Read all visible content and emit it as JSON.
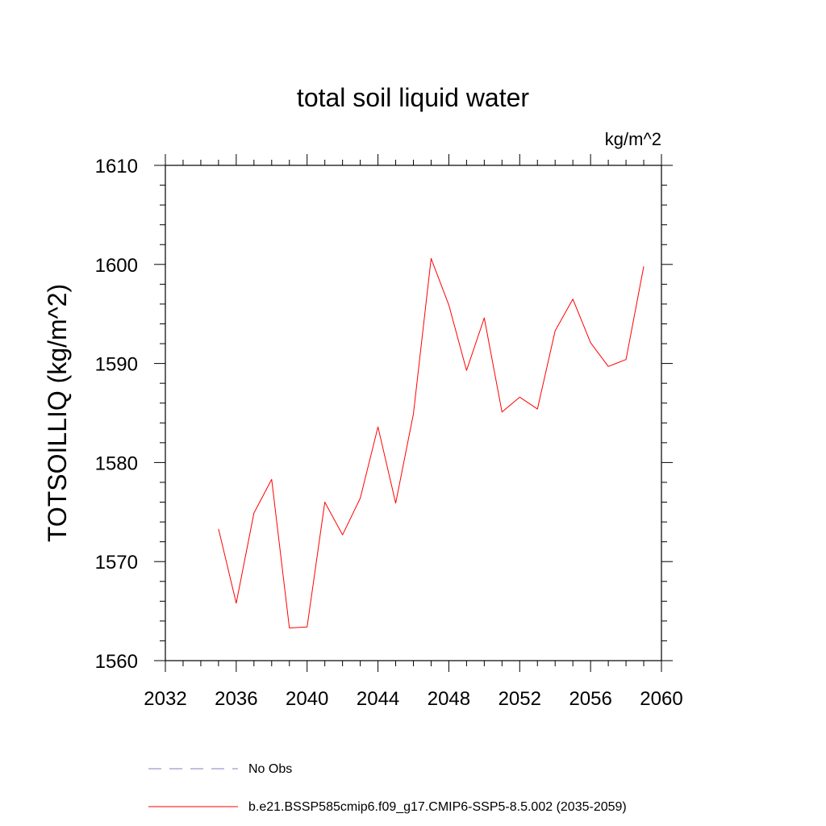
{
  "chart_data": {
    "type": "line",
    "title": "total soil liquid water",
    "units_label": "kg/m^2",
    "ylabel": "TOTSOILLIQ  (kg/m^2)",
    "xlabel": "",
    "xlim": [
      2032,
      2060
    ],
    "ylim": [
      1560,
      1610
    ],
    "x_ticks": [
      "2032",
      "2036",
      "2040",
      "2044",
      "2048",
      "2052",
      "2056",
      "2060"
    ],
    "y_ticks": [
      "1560",
      "1570",
      "1580",
      "1590",
      "1600",
      "1610"
    ],
    "grid": false,
    "series": [
      {
        "name": "b.e21.BSSP585cmip6.f09_g17.CMIP6-SSP5-8.5.002 (2035-2059)",
        "color": "#ff0000",
        "style": "solid",
        "x": [
          2035,
          2036,
          2037,
          2038,
          2039,
          2040,
          2041,
          2042,
          2043,
          2044,
          2045,
          2046,
          2047,
          2048,
          2049,
          2050,
          2051,
          2052,
          2053,
          2054,
          2055,
          2056,
          2057,
          2058,
          2059
        ],
        "y": [
          1573.3,
          1565.8,
          1574.9,
          1578.3,
          1563.3,
          1563.4,
          1576.0,
          1572.7,
          1576.4,
          1583.6,
          1575.9,
          1584.9,
          1600.6,
          1595.9,
          1589.3,
          1594.6,
          1585.1,
          1586.6,
          1585.4,
          1593.3,
          1596.5,
          1592.1,
          1589.7,
          1590.4,
          1599.8
        ]
      }
    ],
    "legend": {
      "placement": "bottom",
      "entries": [
        {
          "label": "No Obs",
          "color": "#8080c0",
          "style": "dashed"
        },
        {
          "label": "b.e21.BSSP585cmip6.f09_g17.CMIP6-SSP5-8.5.002 (2035-2059)",
          "color": "#ff0000",
          "style": "solid"
        }
      ]
    }
  }
}
